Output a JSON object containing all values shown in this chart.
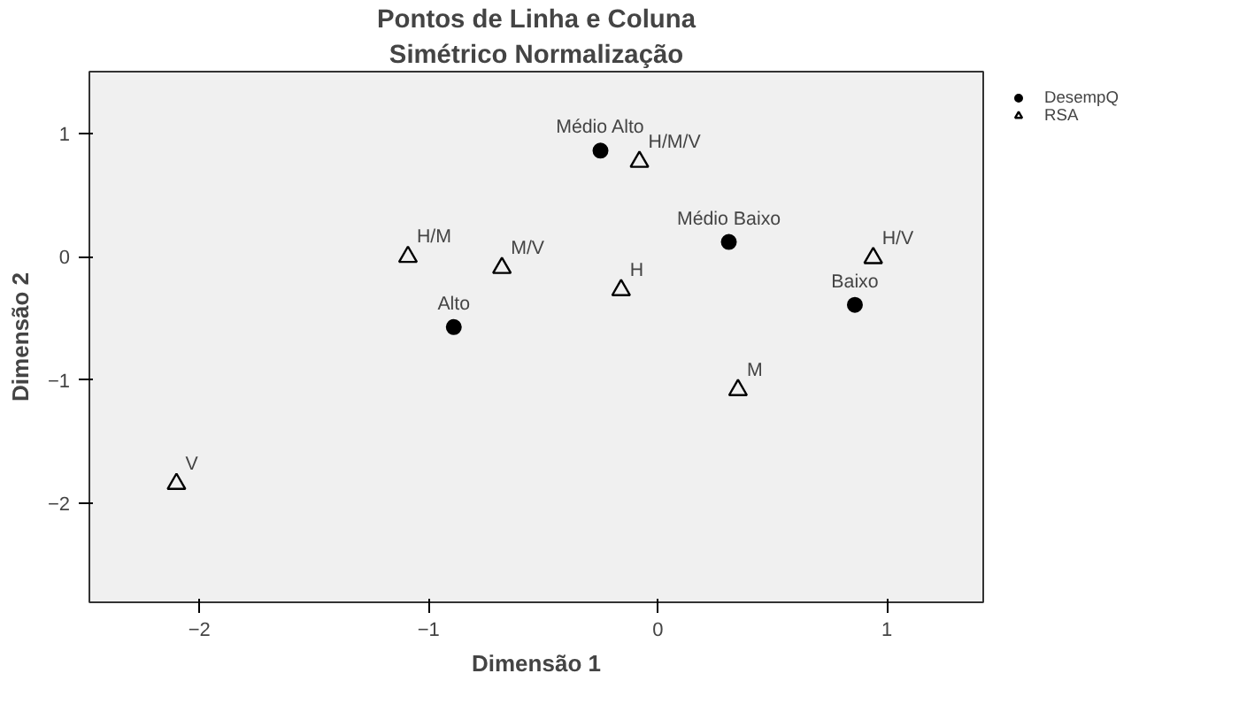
{
  "chart_data": {
    "type": "scatter",
    "title": "Pontos de Linha e Coluna",
    "subtitle": "Simétrico Normalização",
    "xlabel": "Dimensão 1",
    "ylabel": "Dimensão 2",
    "xlim": [
      -2.48,
      1.42
    ],
    "ylim": [
      -2.8,
      1.5
    ],
    "xticks": [
      -2,
      -1,
      0,
      1
    ],
    "yticks": [
      -2,
      -1,
      0,
      1
    ],
    "grid": false,
    "legend": "top right",
    "series": [
      {
        "name": "DesempQ",
        "color": "#000000",
        "marker": "circle",
        "x": [
          -0.25,
          -0.89,
          0.31,
          0.86
        ],
        "values": [
          0.86,
          -0.57,
          0.12,
          -0.39
        ]
      },
      {
        "name": "RSA",
        "color": "#000000",
        "marker": "triangle",
        "x": [
          -0.08,
          -1.09,
          -0.68,
          -0.16,
          0.94,
          0.35,
          -2.1
        ],
        "values": [
          0.77,
          0.0,
          -0.09,
          -0.27,
          -0.01,
          -1.08,
          -1.84
        ]
      }
    ],
    "annotations": [
      {
        "text": "Médio Alto",
        "x": -0.25,
        "y": 0.86
      },
      {
        "text": "Alto",
        "x": -0.89,
        "y": -0.57
      },
      {
        "text": "Médio Baixo",
        "x": 0.31,
        "y": 0.12
      },
      {
        "text": "Baixo",
        "x": 0.86,
        "y": -0.39
      },
      {
        "text": "H/M/V",
        "x": -0.08,
        "y": 0.77
      },
      {
        "text": "H/M",
        "x": -1.09,
        "y": 0.0
      },
      {
        "text": "M/V",
        "x": -0.68,
        "y": -0.09
      },
      {
        "text": "H",
        "x": -0.16,
        "y": -0.27
      },
      {
        "text": "H/V",
        "x": 0.94,
        "y": -0.01
      },
      {
        "text": "M",
        "x": 0.35,
        "y": -1.08
      },
      {
        "text": "V",
        "x": -2.1,
        "y": -1.84
      }
    ]
  }
}
